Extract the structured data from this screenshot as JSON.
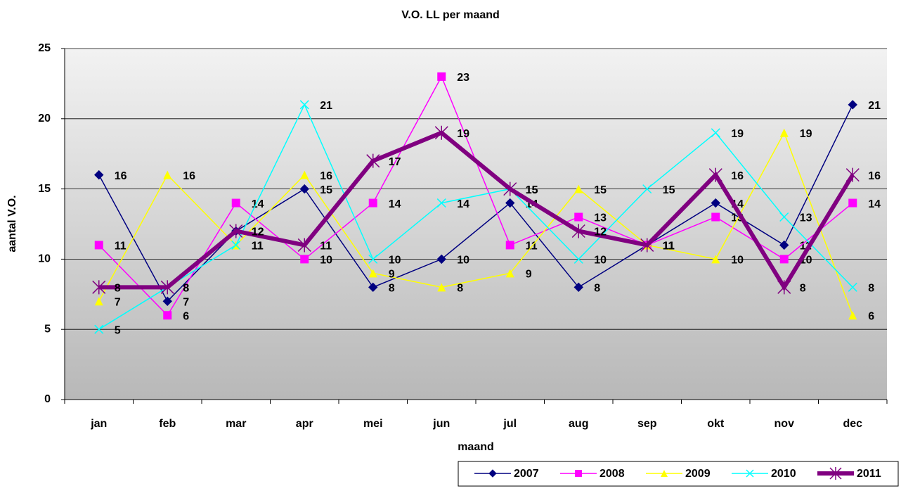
{
  "chart_data": {
    "type": "line",
    "title": "V.O. LL per maand",
    "x_label": "maand",
    "y_label": "aantal V.O.",
    "categories": [
      "jan",
      "feb",
      "mar",
      "apr",
      "mei",
      "jun",
      "jul",
      "aug",
      "sep",
      "okt",
      "nov",
      "dec"
    ],
    "ylim": [
      0,
      25
    ],
    "yticks": [
      0,
      5,
      10,
      15,
      20,
      25
    ],
    "grid": true,
    "legend": "bottom-right",
    "series": [
      {
        "name": "2007",
        "color": "#000080",
        "marker": "diamond",
        "values": [
          16,
          7,
          12,
          15,
          8,
          10,
          14,
          8,
          11,
          14,
          11,
          21
        ]
      },
      {
        "name": "2008",
        "color": "#ff00ff",
        "marker": "square",
        "values": [
          11,
          6,
          14,
          10,
          14,
          23,
          11,
          13,
          11,
          13,
          10,
          14
        ]
      },
      {
        "name": "2009",
        "color": "#ffff00",
        "marker": "triangle",
        "values": [
          7,
          16,
          11,
          16,
          9,
          8,
          9,
          15,
          11,
          10,
          19,
          6
        ]
      },
      {
        "name": "2010",
        "color": "#00ffff",
        "marker": "x",
        "values": [
          5,
          8,
          11,
          21,
          10,
          14,
          15,
          10,
          15,
          19,
          13,
          8
        ]
      },
      {
        "name": "2011",
        "color": "#800080",
        "marker": "star",
        "values": [
          8,
          8,
          12,
          11,
          17,
          19,
          15,
          12,
          11,
          16,
          8,
          16
        ]
      }
    ]
  }
}
